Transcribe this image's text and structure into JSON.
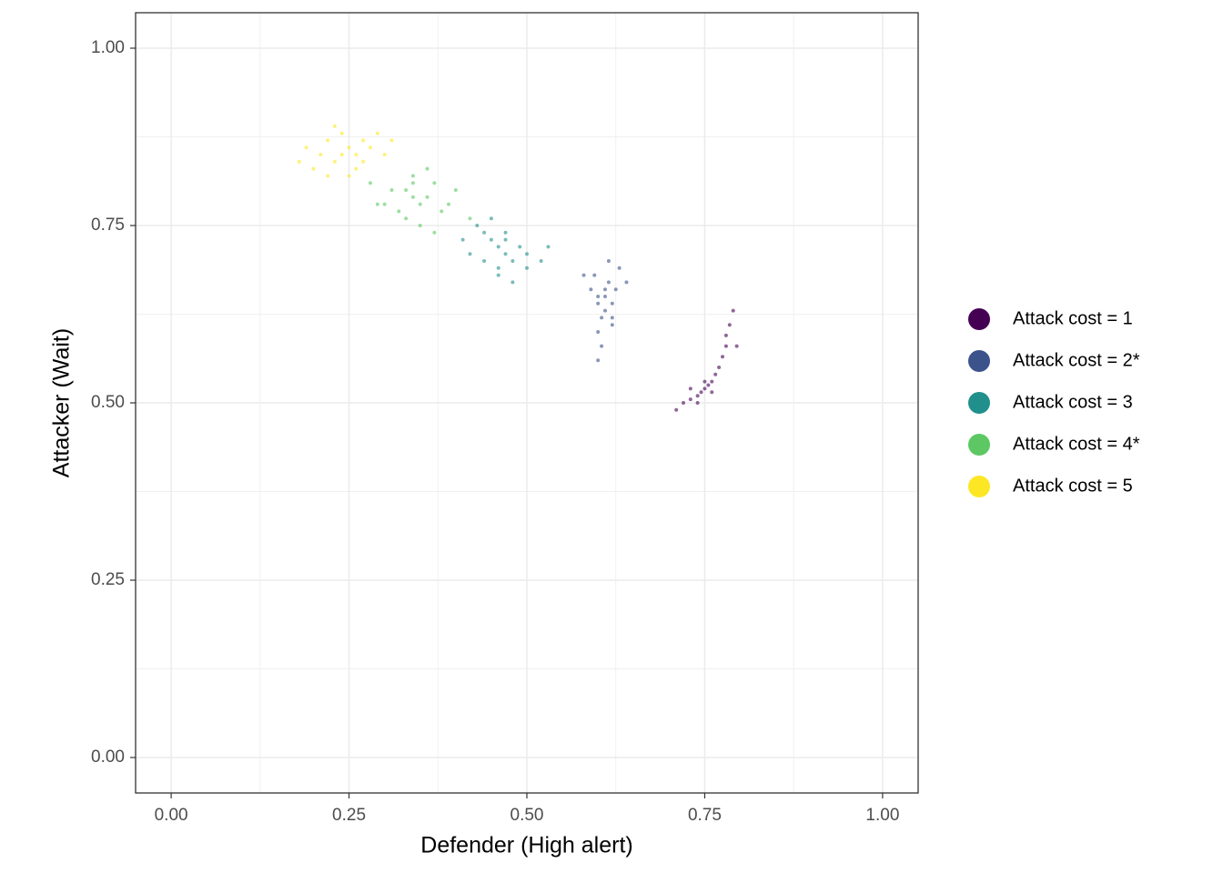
{
  "chart_data": {
    "type": "scatter",
    "x_label": "Defender (High alert)",
    "y_label": "Attacker (Wait)",
    "xlim": [
      -0.05,
      1.05
    ],
    "ylim": [
      -0.05,
      1.05
    ],
    "xticks": [
      {
        "value": 0,
        "label": "0.00"
      },
      {
        "value": 0.25,
        "label": "0.25"
      },
      {
        "value": 0.5,
        "label": "0.50"
      },
      {
        "value": 0.75,
        "label": "0.75"
      },
      {
        "value": 1,
        "label": "1.00"
      }
    ],
    "yticks": [
      {
        "value": 0,
        "label": "0.00"
      },
      {
        "value": 0.25,
        "label": "0.25"
      },
      {
        "value": 0.5,
        "label": "0.50"
      },
      {
        "value": 0.75,
        "label": "0.75"
      },
      {
        "value": 1,
        "label": "1.00"
      }
    ],
    "grid": true,
    "minor_grid": true,
    "legend_position": "right",
    "series": [
      {
        "name": "Attack cost = 1",
        "color": "#440154",
        "x": [
          0.72,
          0.73,
          0.74,
          0.745,
          0.75,
          0.755,
          0.76,
          0.765,
          0.77,
          0.775,
          0.78,
          0.78,
          0.785,
          0.79,
          0.73,
          0.74,
          0.75,
          0.76,
          0.71,
          0.795
        ],
        "y": [
          0.5,
          0.505,
          0.51,
          0.515,
          0.52,
          0.525,
          0.53,
          0.54,
          0.55,
          0.565,
          0.58,
          0.595,
          0.61,
          0.63,
          0.52,
          0.5,
          0.53,
          0.515,
          0.49,
          0.58
        ]
      },
      {
        "name": "Attack cost = 2*",
        "color": "#3B528B",
        "x": [
          0.6,
          0.61,
          0.62,
          0.605,
          0.615,
          0.595,
          0.625,
          0.61,
          0.6,
          0.63,
          0.59,
          0.62,
          0.605,
          0.615,
          0.6,
          0.58,
          0.64,
          0.61,
          0.6,
          0.62
        ],
        "y": [
          0.65,
          0.66,
          0.64,
          0.62,
          0.67,
          0.68,
          0.66,
          0.63,
          0.6,
          0.69,
          0.66,
          0.62,
          0.58,
          0.7,
          0.64,
          0.68,
          0.67,
          0.65,
          0.56,
          0.61
        ]
      },
      {
        "name": "Attack cost = 3",
        "color": "#21908C",
        "x": [
          0.46,
          0.47,
          0.45,
          0.48,
          0.44,
          0.49,
          0.46,
          0.5,
          0.43,
          0.47,
          0.52,
          0.41,
          0.46,
          0.48,
          0.45,
          0.53,
          0.42,
          0.5,
          0.47,
          0.44
        ],
        "y": [
          0.72,
          0.71,
          0.73,
          0.7,
          0.74,
          0.72,
          0.69,
          0.71,
          0.75,
          0.74,
          0.7,
          0.73,
          0.68,
          0.67,
          0.76,
          0.72,
          0.71,
          0.69,
          0.73,
          0.7
        ]
      },
      {
        "name": "Attack cost = 4*",
        "color": "#5DC863",
        "x": [
          0.34,
          0.35,
          0.33,
          0.36,
          0.32,
          0.37,
          0.3,
          0.38,
          0.34,
          0.31,
          0.39,
          0.35,
          0.28,
          0.4,
          0.33,
          0.36,
          0.42,
          0.29,
          0.37,
          0.34
        ],
        "y": [
          0.79,
          0.78,
          0.8,
          0.79,
          0.77,
          0.81,
          0.78,
          0.77,
          0.82,
          0.8,
          0.78,
          0.75,
          0.81,
          0.8,
          0.76,
          0.83,
          0.76,
          0.78,
          0.74,
          0.81
        ]
      },
      {
        "name": "Attack cost = 5",
        "color": "#FDE725",
        "x": [
          0.24,
          0.25,
          0.23,
          0.26,
          0.22,
          0.27,
          0.21,
          0.28,
          0.24,
          0.2,
          0.3,
          0.25,
          0.19,
          0.31,
          0.23,
          0.26,
          0.18,
          0.29,
          0.22,
          0.27
        ],
        "y": [
          0.85,
          0.86,
          0.84,
          0.85,
          0.87,
          0.84,
          0.85,
          0.86,
          0.88,
          0.83,
          0.85,
          0.82,
          0.86,
          0.87,
          0.89,
          0.83,
          0.84,
          0.88,
          0.82,
          0.87
        ]
      }
    ]
  }
}
